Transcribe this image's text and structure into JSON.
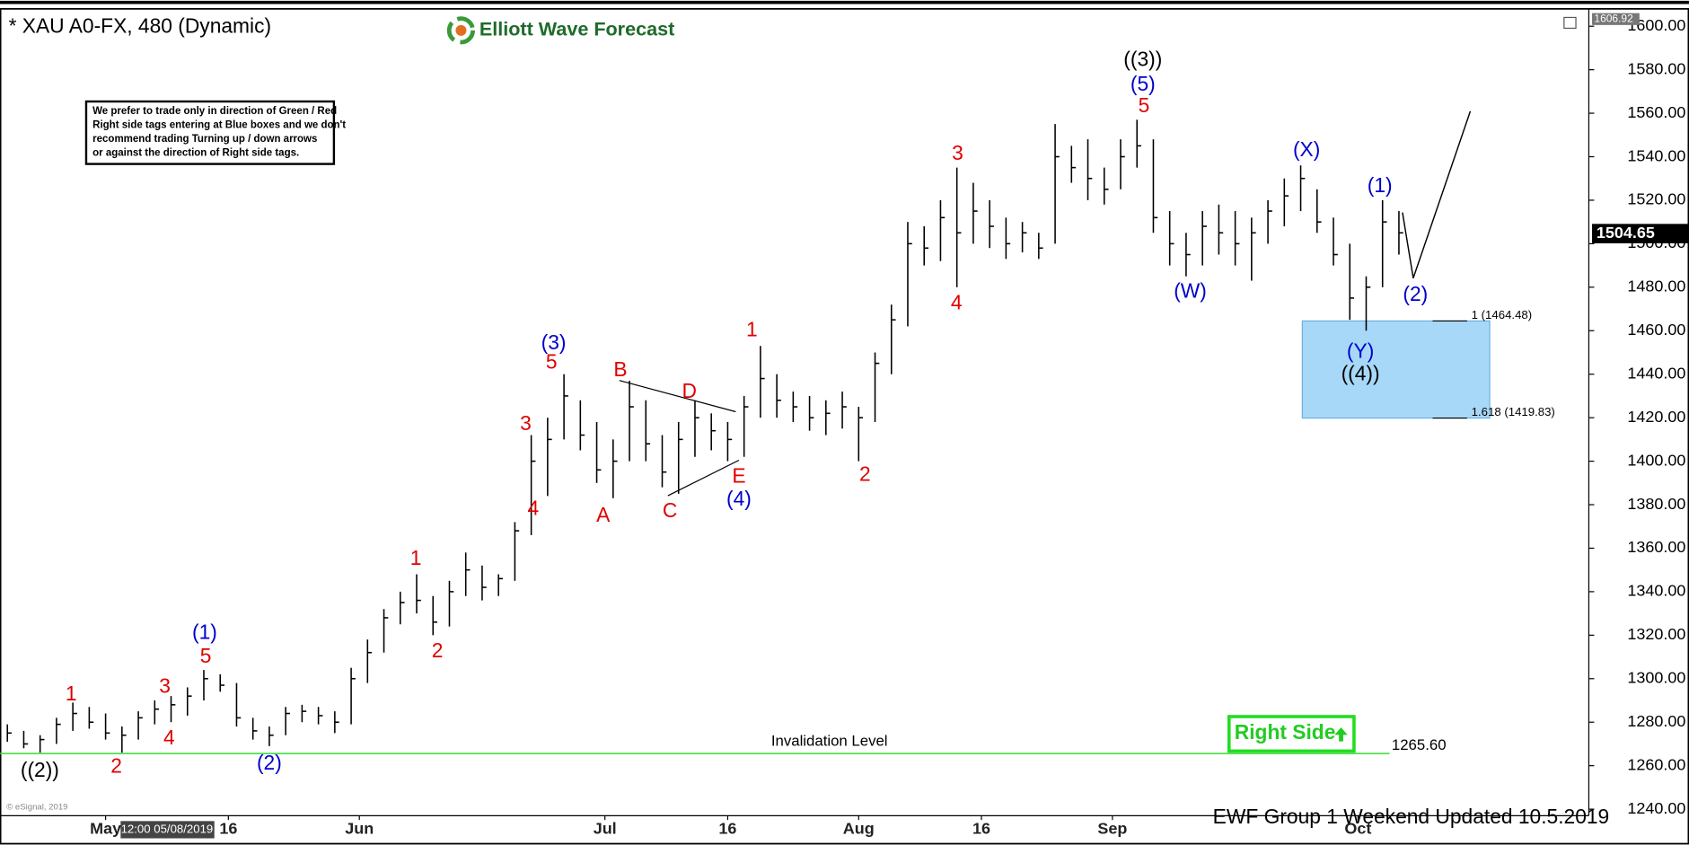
{
  "chart_data": {
    "type": "ohlc",
    "title": "* XAU A0-FX, 480 (Dynamic)",
    "logo": "Elliott Wave Forecast",
    "note": [
      "We prefer to trade only in direction of Green / Red",
      "Right side tags entering at Blue boxes and we don't",
      "recommend trading Turning up / down arrows",
      "or against the direction of Right side tags."
    ],
    "right_side": "Right Side",
    "footer": "EWF Group 1  Weekend  Updated 10.5.2019",
    "copyright": "© eSignal, 2019",
    "cursor_label": "12:00 05/08/2019",
    "xlim": [
      -12.9,
      181.2
    ],
    "xticks": [
      {
        "value": 0,
        "label": "May"
      },
      {
        "value": 15,
        "label": "16"
      },
      {
        "value": 31,
        "label": "Jun"
      },
      {
        "value": 61,
        "label": "Jul"
      },
      {
        "value": 76,
        "label": "16"
      },
      {
        "value": 92,
        "label": "Aug"
      },
      {
        "value": 107,
        "label": "16"
      },
      {
        "value": 123,
        "label": "Sep"
      },
      {
        "value": 153,
        "label": "Oct"
      }
    ],
    "ylim": [
      1237,
      1607
    ],
    "yticks": [
      {
        "value": 1240,
        "label": "1240.00"
      },
      {
        "value": 1260,
        "label": "1260.00"
      },
      {
        "value": 1280,
        "label": "1280.00"
      },
      {
        "value": 1300,
        "label": "1300.00"
      },
      {
        "value": 1320,
        "label": "1320.00"
      },
      {
        "value": 1340,
        "label": "1340.00"
      },
      {
        "value": 1360,
        "label": "1360.00"
      },
      {
        "value": 1380,
        "label": "1380.00"
      },
      {
        "value": 1400,
        "label": "1400.00"
      },
      {
        "value": 1420,
        "label": "1420.00"
      },
      {
        "value": 1440,
        "label": "1440.00"
      },
      {
        "value": 1460,
        "label": "1460.00"
      },
      {
        "value": 1480,
        "label": "1480.00"
      },
      {
        "value": 1500,
        "label": "1500.00"
      },
      {
        "value": 1520,
        "label": "1520.00"
      },
      {
        "value": 1540,
        "label": "1540.00"
      },
      {
        "value": 1560,
        "label": "1560.00"
      },
      {
        "value": 1580,
        "label": "1580.00"
      },
      {
        "value": 1600,
        "label": "1600.00"
      }
    ],
    "axis_top_value": 1606.92,
    "last_price": 1504.65,
    "bar_color": "#000000",
    "bars": {
      "x": [
        -12,
        -10,
        -8,
        -6,
        -4,
        -2,
        0,
        2,
        4,
        6,
        8,
        10,
        12,
        14,
        16,
        18,
        20,
        22,
        24,
        26,
        28,
        30,
        32,
        34,
        36,
        38,
        40,
        42,
        44,
        46,
        48,
        50,
        52,
        54,
        56,
        58,
        60,
        62,
        64,
        66,
        68,
        70,
        72,
        74,
        76,
        78,
        80,
        82,
        84,
        86,
        88,
        90,
        92,
        94,
        96,
        98,
        100,
        102,
        104,
        106,
        108,
        110,
        112,
        114,
        116,
        118,
        120,
        122,
        124,
        126,
        128,
        130,
        132,
        134,
        136,
        138,
        140,
        142,
        144,
        146,
        148,
        150,
        152,
        154,
        156,
        158
      ],
      "high": [
        1279,
        1276,
        1274,
        1282,
        1289,
        1287,
        1284,
        1278,
        1285,
        1290,
        1292,
        1296,
        1304,
        1302,
        1298,
        1282,
        1278,
        1287,
        1288,
        1287,
        1285,
        1305,
        1318,
        1332,
        1340,
        1348,
        1338,
        1345,
        1358,
        1352,
        1348,
        1372,
        1412,
        1420,
        1440,
        1428,
        1418,
        1410,
        1437,
        1428,
        1412,
        1418,
        1428,
        1422,
        1418,
        1430,
        1453,
        1440,
        1432,
        1430,
        1428,
        1432,
        1425,
        1450,
        1472,
        1510,
        1508,
        1520,
        1535,
        1528,
        1520,
        1512,
        1510,
        1505,
        1555,
        1545,
        1548,
        1535,
        1548,
        1557,
        1548,
        1515,
        1505,
        1515,
        1518,
        1515,
        1512,
        1520,
        1530,
        1536,
        1525,
        1512,
        1500,
        1485,
        1520,
        1515
      ],
      "low": [
        1271,
        1268,
        1266,
        1270,
        1276,
        1277,
        1272,
        1266,
        1272,
        1279,
        1280,
        1283,
        1290,
        1294,
        1278,
        1272,
        1269,
        1274,
        1280,
        1279,
        1275,
        1279,
        1298,
        1312,
        1325,
        1330,
        1320,
        1324,
        1338,
        1336,
        1338,
        1345,
        1366,
        1384,
        1410,
        1405,
        1390,
        1383,
        1400,
        1400,
        1388,
        1385,
        1402,
        1405,
        1400,
        1402,
        1420,
        1420,
        1418,
        1414,
        1412,
        1415,
        1400,
        1418,
        1440,
        1462,
        1490,
        1492,
        1480,
        1500,
        1498,
        1493,
        1496,
        1493,
        1500,
        1528,
        1520,
        1518,
        1525,
        1535,
        1505,
        1490,
        1485,
        1490,
        1495,
        1490,
        1483,
        1500,
        1508,
        1515,
        1505,
        1490,
        1465,
        1460,
        1480,
        1495
      ],
      "close": [
        1275,
        1270,
        1272,
        1279,
        1284,
        1280,
        1275,
        1274,
        1282,
        1286,
        1288,
        1292,
        1300,
        1297,
        1282,
        1276,
        1274,
        1284,
        1285,
        1283,
        1280,
        1300,
        1312,
        1328,
        1335,
        1336,
        1326,
        1340,
        1350,
        1342,
        1346,
        1368,
        1400,
        1410,
        1430,
        1412,
        1396,
        1400,
        1425,
        1408,
        1395,
        1410,
        1420,
        1414,
        1410,
        1425,
        1438,
        1428,
        1425,
        1420,
        1422,
        1425,
        1420,
        1445,
        1465,
        1500,
        1498,
        1512,
        1505,
        1515,
        1508,
        1500,
        1505,
        1498,
        1540,
        1535,
        1530,
        1525,
        1540,
        1545,
        1512,
        1500,
        1495,
        1508,
        1505,
        1500,
        1505,
        1515,
        1522,
        1530,
        1510,
        1495,
        1475,
        1480,
        1510,
        1505
      ]
    },
    "invalidation": {
      "label": "Invalidation Level",
      "value": 1265.6,
      "value_label": "1265.60",
      "color": "#33dd33"
    },
    "target_zone": {
      "color": "#a8d8f8",
      "levels": [
        {
          "value": 1464.48,
          "label": "1 (1464.48)"
        },
        {
          "value": 1419.83,
          "label": "1.618 (1419.83)"
        }
      ]
    },
    "annotations": [
      {
        "text": "((2))",
        "color": "#000000"
      },
      {
        "text": "1",
        "color": "#e00000"
      },
      {
        "text": "2",
        "color": "#e00000"
      },
      {
        "text": "3",
        "color": "#e00000"
      },
      {
        "text": "4",
        "color": "#e00000"
      },
      {
        "text": "5",
        "color": "#e00000"
      },
      {
        "text": "(1)",
        "color": "#0000cc"
      },
      {
        "text": "(2)",
        "color": "#0000cc"
      },
      {
        "text": "1",
        "color": "#e00000"
      },
      {
        "text": "2",
        "color": "#e00000"
      },
      {
        "text": "3",
        "color": "#e00000"
      },
      {
        "text": "4",
        "color": "#e00000"
      },
      {
        "text": "5",
        "color": "#e00000"
      },
      {
        "text": "(3)",
        "color": "#0000cc"
      },
      {
        "text": "A",
        "color": "#e00000"
      },
      {
        "text": "B",
        "color": "#e00000"
      },
      {
        "text": "C",
        "color": "#e00000"
      },
      {
        "text": "D",
        "color": "#e00000"
      },
      {
        "text": "E",
        "color": "#e00000"
      },
      {
        "text": "(4)",
        "color": "#0000cc"
      },
      {
        "text": "1",
        "color": "#e00000"
      },
      {
        "text": "2",
        "color": "#e00000"
      },
      {
        "text": "3",
        "color": "#e00000"
      },
      {
        "text": "4",
        "color": "#e00000"
      },
      {
        "text": "((3))",
        "color": "#000000"
      },
      {
        "text": "(5)",
        "color": "#0000cc"
      },
      {
        "text": "5",
        "color": "#e00000"
      },
      {
        "text": "(W)",
        "color": "#0000cc"
      },
      {
        "text": "(X)",
        "color": "#0000cc"
      },
      {
        "text": "(1)",
        "color": "#0000cc"
      },
      {
        "text": "(2)",
        "color": "#0000cc"
      },
      {
        "text": "(Y)",
        "color": "#0000cc"
      },
      {
        "text": "((4))",
        "color": "#000000"
      }
    ]
  }
}
